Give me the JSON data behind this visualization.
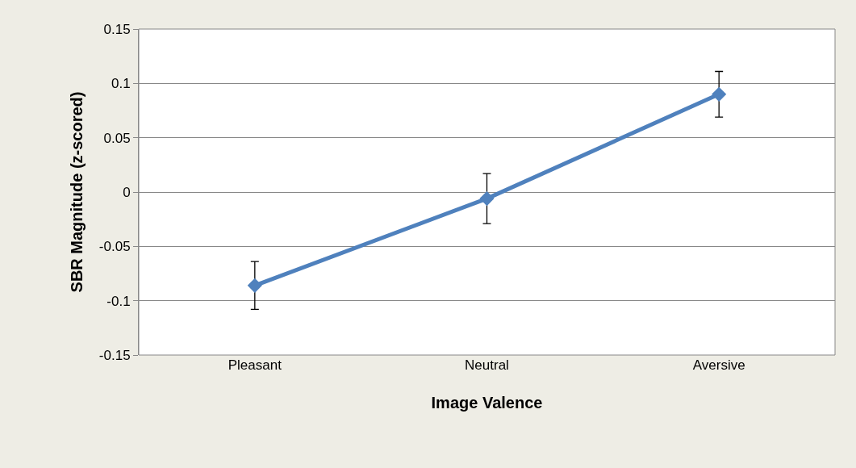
{
  "chart_data": {
    "type": "line",
    "xlabel": "Image Valence",
    "ylabel": "SBR Magnitude (z-scored)",
    "categories": [
      "Pleasant",
      "Neutral",
      "Aversive"
    ],
    "series": [
      {
        "color": "#4f81bd",
        "values": [
          -0.086,
          -0.006,
          0.09
        ],
        "errors": [
          0.022,
          0.023,
          0.021
        ]
      }
    ],
    "ylim": [
      -0.15,
      0.15
    ],
    "yticks": [
      -0.15,
      -0.1,
      -0.05,
      0,
      0.05,
      0.1,
      0.15
    ],
    "grid": "y",
    "marker": "diamond",
    "line_style": "solid"
  }
}
